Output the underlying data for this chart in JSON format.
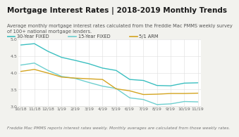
{
  "title": "Mortgage Interest Rates | 2018-2019 Monthly Trends",
  "subtitle": "Average monthly mortgage interest rates calculated from the Freddie Mac PMMS weekly survey\nof 100+ national mortgage lenders.",
  "footnote": "Freddie Mac PMMS reports interest rates weekly. Monthly averages are calculated from those weekly rates.",
  "x_labels": [
    "10/18",
    "11/18",
    "12/18",
    "1/19",
    "2/19",
    "3/19",
    "4/19",
    "5/19",
    "6/19",
    "7/19",
    "8/19",
    "9/19",
    "10/19",
    "11/19"
  ],
  "series_30yr": [
    4.83,
    4.87,
    4.64,
    4.46,
    4.37,
    4.27,
    4.14,
    4.07,
    3.8,
    3.77,
    3.62,
    3.61,
    3.69,
    3.7
  ],
  "series_15yr": [
    4.23,
    4.29,
    4.07,
    3.89,
    3.83,
    3.71,
    3.6,
    3.53,
    3.25,
    3.2,
    3.05,
    3.07,
    3.14,
    3.13
  ],
  "series_arm": [
    4.04,
    4.1,
    3.99,
    3.87,
    3.84,
    3.82,
    3.8,
    3.52,
    3.46,
    3.35,
    3.36,
    3.38,
    3.38,
    3.39
  ],
  "color_30yr": "#3abfc0",
  "color_15yr": "#6dcfcf",
  "color_arm": "#d4a420",
  "ylim": [
    3.0,
    5.0
  ],
  "yticks": [
    3.0,
    3.5,
    4.0,
    4.5,
    5.0
  ],
  "bg_color": "#f2f2ee",
  "plot_bg": "#ffffff",
  "grid_color": "#dddddd",
  "title_fontsize": 7.5,
  "subtitle_fontsize": 4.8,
  "footnote_fontsize": 4.2,
  "legend_fontsize": 4.8,
  "tick_fontsize": 4.5,
  "line_width": 1.0
}
